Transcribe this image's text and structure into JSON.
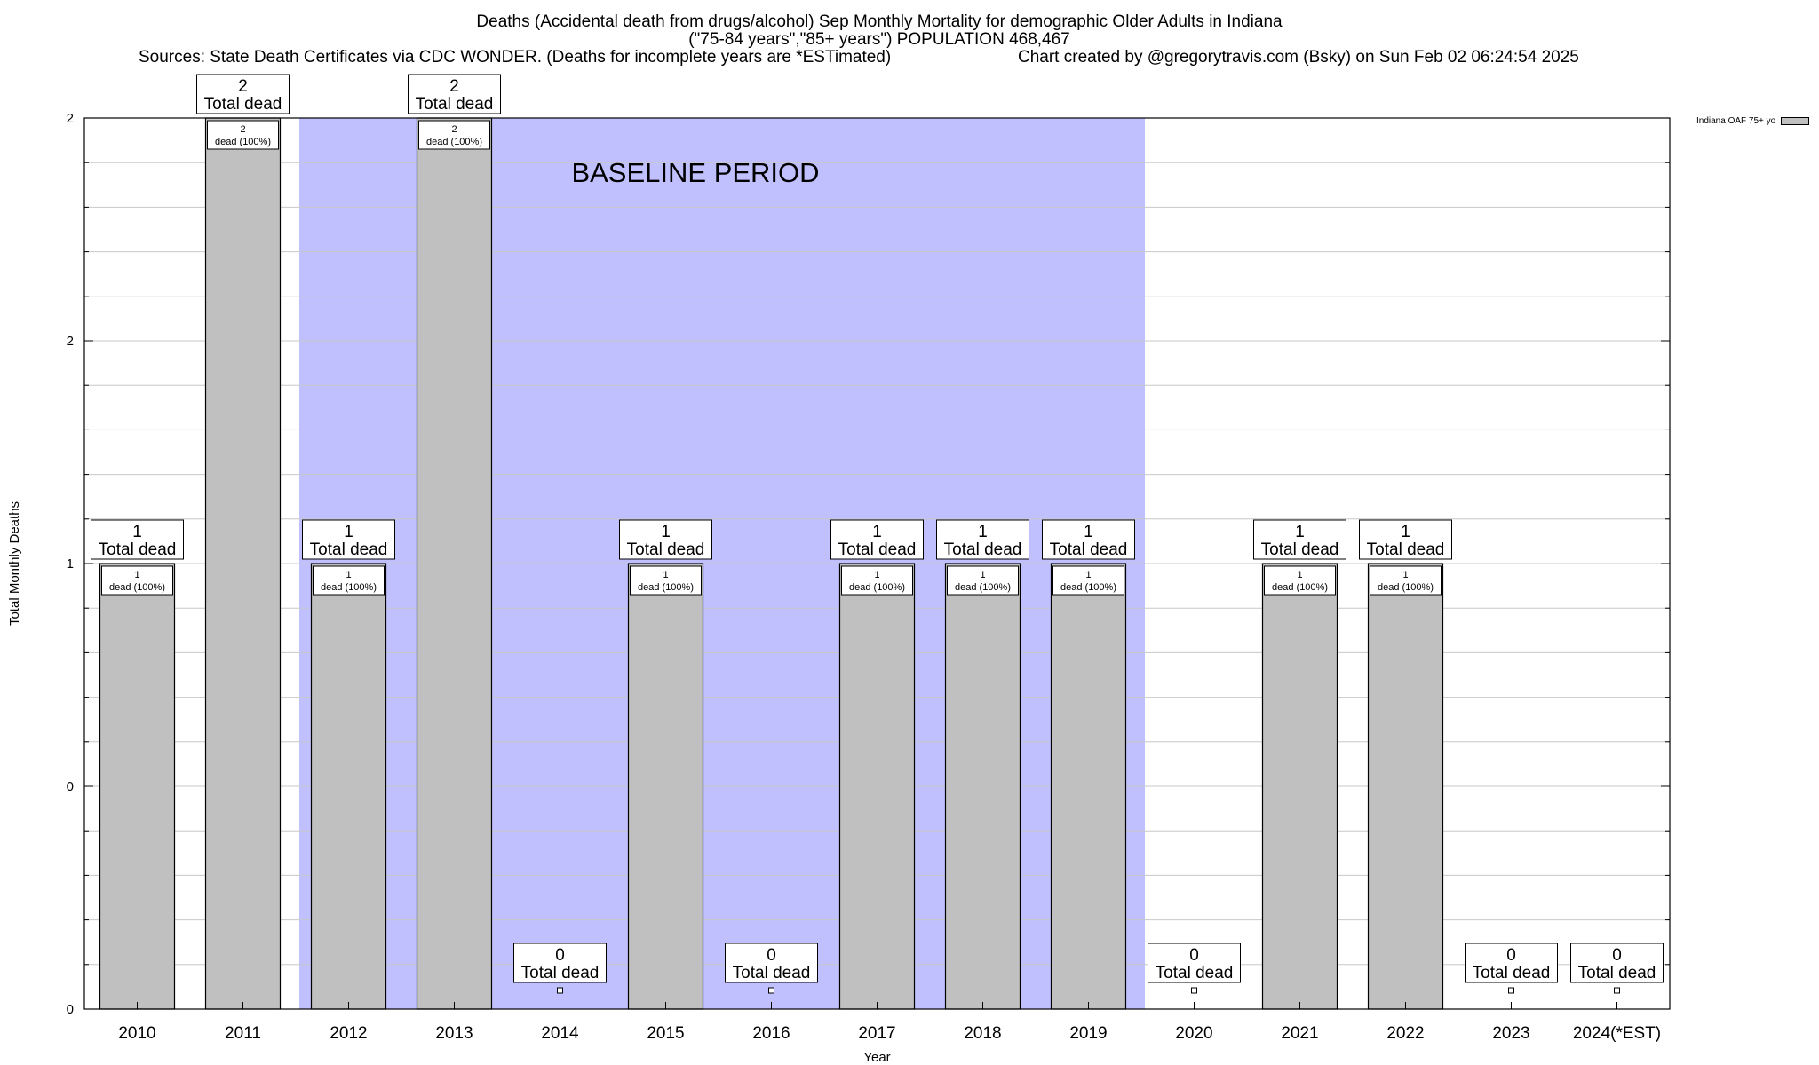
{
  "chart_data": {
    "type": "bar",
    "title": "Deaths (Accidental death from drugs/alcohol) Sep Monthly Mortality for demographic Older Adults in Indiana",
    "subtitle": "(\"75-84 years\",\"85+ years\") POPULATION 468,467",
    "sources": "Sources: State Death Certificates via CDC WONDER. (Deaths for incomplete years are *ESTimated)",
    "credit": "Chart created by @gregorytravis.com (Bsky) on Sun Feb 02 06:24:54 2025",
    "xlabel": "Year",
    "ylabel": "Total Monthly Deaths",
    "categories": [
      "2010",
      "2011",
      "2012",
      "2013",
      "2014",
      "2015",
      "2016",
      "2017",
      "2018",
      "2019",
      "2020",
      "2021",
      "2022",
      "2023",
      "2024(*EST)"
    ],
    "series": [
      {
        "name": "Indiana OAF 75+ yo",
        "values": [
          1,
          2,
          1,
          2,
          0,
          1,
          0,
          1,
          1,
          1,
          0,
          1,
          1,
          0,
          0
        ]
      }
    ],
    "total_labels": [
      "1",
      "2",
      "1",
      "2",
      "0",
      "1",
      "0",
      "1",
      "1",
      "1",
      "0",
      "1",
      "1",
      "0",
      "0"
    ],
    "total_suffix": "Total dead",
    "inner_labels": [
      "1",
      "2",
      "1",
      "2",
      "",
      "1",
      "",
      "1",
      "1",
      "1",
      "",
      "1",
      "1",
      "",
      ""
    ],
    "inner_suffix": "dead (100%)",
    "ylim": [
      0,
      2
    ],
    "ytick_labels": [
      "0",
      "0",
      "1",
      "2",
      "2"
    ],
    "grid": true,
    "legend_position": "top-right",
    "baseline": {
      "label": "BASELINE PERIOD",
      "start": "2012",
      "end": "2019"
    },
    "colors": {
      "bar": "#c0c0c0",
      "baseline": "#c0c0ff",
      "grid": "#c8c8c8"
    }
  }
}
